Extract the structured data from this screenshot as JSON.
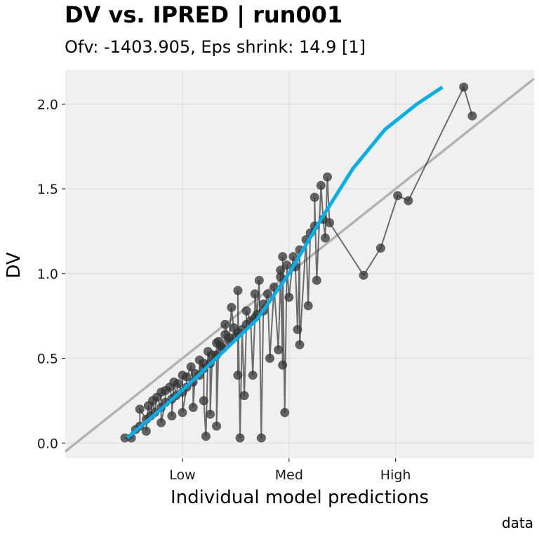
{
  "title": "DV vs. IPRED | run001",
  "subtitle": "Ofv: -1403.905, Eps shrink: 14.9 [1]",
  "caption": "data",
  "colors": {
    "panel": "#f0f0f0",
    "grid": "#dedede",
    "points": "#333333",
    "smooth": "#00aee8",
    "identity": "#b3b3b3"
  },
  "chart_data": {
    "type": "scatter",
    "title": "DV vs. IPRED | run001",
    "subtitle": "Ofv: -1403.905, Eps shrink: 14.9 [1]",
    "xlabel": "Individual model predictions",
    "ylabel": "DV",
    "xlim": [
      -0.05,
      2.15
    ],
    "ylim": [
      -0.09,
      2.2
    ],
    "x_ticks": [
      {
        "value": 0.5,
        "label": "Low"
      },
      {
        "value": 1.0,
        "label": "Med"
      },
      {
        "value": 1.5,
        "label": "High"
      }
    ],
    "y_ticks": [
      {
        "value": 0.0,
        "label": "0.0"
      },
      {
        "value": 0.5,
        "label": "0.5"
      },
      {
        "value": 1.0,
        "label": "1.0"
      },
      {
        "value": 1.5,
        "label": "1.5"
      },
      {
        "value": 2.0,
        "label": "2.0"
      }
    ],
    "grid": true,
    "identity_line": true,
    "series": [
      {
        "points": [
          [
            0.23,
            0.03
          ],
          [
            0.26,
            0.03
          ],
          [
            0.28,
            0.08
          ],
          [
            0.3,
            0.1
          ],
          [
            0.33,
            0.14
          ],
          [
            0.35,
            0.16
          ],
          [
            0.37,
            0.18
          ],
          [
            0.4,
            0.21
          ],
          [
            0.42,
            0.24
          ],
          [
            0.45,
            0.26
          ],
          [
            0.47,
            0.28
          ],
          [
            0.5,
            0.3
          ],
          [
            0.52,
            0.33
          ],
          [
            0.55,
            0.36
          ],
          [
            0.58,
            0.4
          ],
          [
            0.6,
            0.44
          ],
          [
            0.63,
            0.47
          ],
          [
            0.66,
            0.52
          ],
          [
            0.69,
            0.56
          ],
          [
            0.72,
            0.6
          ],
          [
            0.75,
            0.63
          ],
          [
            0.78,
            0.67
          ],
          [
            0.82,
            0.72
          ],
          [
            0.85,
            0.76
          ],
          [
            0.88,
            0.82
          ],
          [
            0.9,
            0.88
          ],
          [
            0.93,
            0.92
          ],
          [
            0.96,
            0.98
          ],
          [
            0.99,
            1.05
          ],
          [
            1.02,
            1.1
          ],
          [
            1.05,
            1.14
          ],
          [
            1.08,
            1.2
          ],
          [
            1.12,
            1.28
          ],
          [
            1.16,
            1.32
          ],
          [
            0.36,
            0.25
          ],
          [
            0.4,
            0.3
          ],
          [
            0.44,
            0.33
          ],
          [
            0.48,
            0.35
          ],
          [
            0.52,
            0.39
          ],
          [
            0.56,
            0.41
          ],
          [
            0.6,
            0.47
          ],
          [
            0.64,
            0.52
          ],
          [
            0.68,
            0.57
          ],
          [
            0.72,
            0.62
          ],
          [
            0.76,
            0.65
          ],
          [
            0.8,
            0.7
          ],
          [
            0.84,
            0.74
          ],
          [
            0.88,
            0.78
          ],
          [
            0.3,
            0.2
          ],
          [
            0.34,
            0.22
          ],
          [
            0.38,
            0.27
          ],
          [
            0.42,
            0.31
          ],
          [
            0.46,
            0.36
          ],
          [
            0.5,
            0.4
          ],
          [
            0.54,
            0.45
          ],
          [
            0.58,
            0.49
          ],
          [
            0.62,
            0.54
          ],
          [
            0.66,
            0.59
          ],
          [
            0.7,
            0.64
          ],
          [
            0.74,
            0.68
          ],
          [
            0.33,
            0.07
          ],
          [
            0.4,
            0.12
          ],
          [
            0.45,
            0.16
          ],
          [
            0.5,
            0.18
          ],
          [
            0.55,
            0.21
          ],
          [
            0.6,
            0.25
          ],
          [
            0.63,
            0.17
          ],
          [
            0.66,
            0.1
          ],
          [
            0.61,
            0.04
          ],
          [
            0.77,
            0.03
          ],
          [
            0.87,
            0.03
          ],
          [
            0.79,
            0.28
          ],
          [
            0.76,
            0.4
          ],
          [
            0.83,
            0.4
          ],
          [
            0.91,
            0.5
          ],
          [
            0.95,
            0.55
          ],
          [
            0.97,
            0.46
          ],
          [
            0.98,
            0.18
          ],
          [
            1.04,
            0.67
          ],
          [
            1.05,
            0.58
          ],
          [
            1.0,
            0.86
          ],
          [
            0.96,
            1.02
          ],
          [
            0.97,
            1.1
          ],
          [
            1.03,
            1.04
          ],
          [
            1.09,
            0.81
          ],
          [
            1.13,
            0.96
          ],
          [
            1.1,
            1.24
          ],
          [
            1.12,
            1.45
          ],
          [
            1.15,
            1.52
          ],
          [
            1.18,
            1.57
          ],
          [
            1.17,
            1.21
          ],
          [
            1.19,
            1.3
          ],
          [
            0.67,
            0.6
          ],
          [
            0.7,
            0.7
          ],
          [
            0.73,
            0.8
          ],
          [
            0.76,
            0.9
          ],
          [
            0.8,
            0.78
          ],
          [
            0.84,
            0.88
          ],
          [
            0.86,
            0.96
          ],
          [
            1.35,
            0.99
          ],
          [
            1.43,
            1.15
          ],
          [
            1.51,
            1.46
          ],
          [
            1.56,
            1.43
          ],
          [
            1.82,
            2.1
          ],
          [
            1.86,
            1.93
          ]
        ]
      }
    ],
    "smooth_line": [
      [
        0.24,
        0.03
      ],
      [
        0.4,
        0.2
      ],
      [
        0.55,
        0.37
      ],
      [
        0.7,
        0.55
      ],
      [
        0.85,
        0.73
      ],
      [
        1.0,
        1.0
      ],
      [
        1.15,
        1.32
      ],
      [
        1.3,
        1.62
      ],
      [
        1.45,
        1.85
      ],
      [
        1.6,
        2.0
      ],
      [
        1.72,
        2.1
      ]
    ]
  }
}
